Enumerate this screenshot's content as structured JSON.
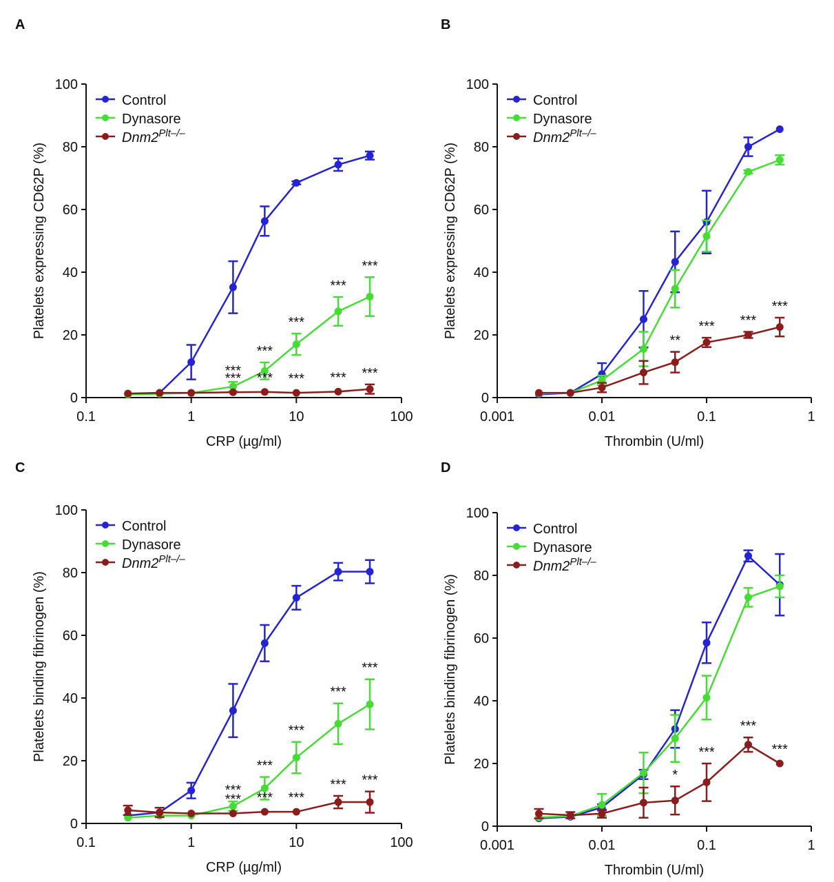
{
  "chart_data": [
    {
      "type": "line",
      "panel": "A",
      "x_label": "CRP (µg/ml)",
      "y_label": "Platelets expressing CD62P (%)",
      "xscale": "log",
      "xlim": [
        0.1,
        100
      ],
      "xticks": [
        0.1,
        1,
        10,
        100
      ],
      "ylim": [
        0,
        100
      ],
      "yticks": [
        0,
        20,
        40,
        60,
        80,
        100
      ],
      "legend": "upper left",
      "x": [
        0.25,
        0.5,
        1,
        2.5,
        5,
        10,
        25,
        50
      ],
      "series": [
        {
          "name": "Control",
          "color": "#2424d4",
          "values": [
            1.2,
            1.5,
            11.3,
            35.2,
            56.3,
            68.5,
            74.3,
            77.2
          ],
          "errors": [
            null,
            null,
            5.5,
            8.3,
            4.7,
            0.5,
            2,
            1.3
          ],
          "significance": [
            null,
            null,
            null,
            null,
            null,
            null,
            null,
            null
          ]
        },
        {
          "name": "Dynasore",
          "color": "#46dc35",
          "values": [
            1.0,
            1.2,
            1.5,
            3.5,
            8.5,
            17,
            27.5,
            32.2
          ],
          "errors": [
            null,
            null,
            null,
            1.5,
            2.7,
            3.4,
            4.6,
            6.2
          ],
          "significance": [
            null,
            null,
            null,
            "***",
            "***",
            "***",
            "***",
            "***"
          ]
        },
        {
          "name": "Dnm2",
          "name_sup": "Plt–/–",
          "color": "#8b1c1c",
          "values": [
            1.3,
            1.5,
            1.5,
            1.7,
            1.8,
            1.5,
            1.9,
            2.7
          ],
          "errors": [
            null,
            null,
            null,
            null,
            null,
            null,
            null,
            1.5
          ],
          "significance": [
            null,
            null,
            null,
            "***",
            "***",
            "***",
            "***",
            "***"
          ]
        }
      ]
    },
    {
      "type": "line",
      "panel": "B",
      "x_label": "Thrombin (U/ml)",
      "y_label": "Platelets expressing CD62P (%)",
      "xscale": "log",
      "xlim": [
        0.001,
        1
      ],
      "xticks": [
        0.001,
        0.01,
        0.1,
        1
      ],
      "ylim": [
        0,
        100
      ],
      "yticks": [
        0,
        20,
        40,
        60,
        80,
        100
      ],
      "legend": "upper left",
      "x": [
        0.0025,
        0.005,
        0.01,
        0.025,
        0.05,
        0.1,
        0.25,
        0.5
      ],
      "series": [
        {
          "name": "Control",
          "color": "#2424d4",
          "values": [
            1,
            1.5,
            7.5,
            25,
            43.3,
            56,
            80,
            85.6
          ],
          "errors": [
            null,
            null,
            3.5,
            9,
            9.7,
            10,
            3,
            null
          ],
          "significance": [
            null,
            null,
            null,
            null,
            null,
            null,
            null,
            null
          ]
        },
        {
          "name": "Dynasore",
          "color": "#46dc35",
          "values": [
            1.3,
            1.5,
            5.5,
            15.5,
            34.7,
            51.5,
            72,
            75.8
          ],
          "errors": [
            null,
            null,
            1.5,
            5.5,
            6,
            5,
            0.5,
            1.5
          ],
          "significance": [
            null,
            null,
            null,
            null,
            null,
            null,
            null,
            null
          ]
        },
        {
          "name": "Dnm2",
          "name_sup": "Plt–/–",
          "color": "#8b1c1c",
          "values": [
            1.5,
            1.5,
            3.2,
            8,
            11.3,
            17.6,
            20,
            22.5
          ],
          "errors": [
            null,
            null,
            1.5,
            3.7,
            3.3,
            1.5,
            1,
            3
          ],
          "significance": [
            null,
            null,
            null,
            null,
            "**",
            "***",
            "***",
            "***"
          ]
        }
      ]
    },
    {
      "type": "line",
      "panel": "C",
      "x_label": "CRP (µg/ml)",
      "y_label": "Platelets binding fibrinogen (%)",
      "xscale": "log",
      "xlim": [
        0.1,
        100
      ],
      "xticks": [
        0.1,
        1,
        10,
        100
      ],
      "ylim": [
        0,
        100
      ],
      "yticks": [
        0,
        20,
        40,
        60,
        80,
        100
      ],
      "legend": "upper left",
      "x": [
        0.25,
        0.5,
        1,
        2.5,
        5,
        10,
        25,
        50
      ],
      "series": [
        {
          "name": "Control",
          "color": "#2424d4",
          "values": [
            2.5,
            3.5,
            10.5,
            36,
            57.5,
            72,
            80.3,
            80.3
          ],
          "errors": [
            null,
            null,
            2.5,
            8.5,
            5.8,
            3.8,
            2.8,
            3.7
          ],
          "significance": [
            null,
            null,
            null,
            null,
            null,
            null,
            null,
            null
          ]
        },
        {
          "name": "Dynasore",
          "color": "#46dc35",
          "values": [
            1.8,
            2.5,
            2.5,
            5.5,
            11.2,
            21,
            31.8,
            38
          ],
          "errors": [
            null,
            null,
            null,
            1.5,
            3.6,
            5,
            6.5,
            8
          ],
          "significance": [
            null,
            null,
            null,
            "***",
            "***",
            "***",
            "***",
            "***"
          ]
        },
        {
          "name": "Dnm2",
          "name_sup": "Plt–/–",
          "color": "#8b1c1c",
          "values": [
            4.2,
            3.5,
            3.2,
            3.2,
            3.7,
            3.7,
            6.8,
            6.8
          ],
          "errors": [
            1.5,
            1.5,
            null,
            null,
            null,
            null,
            2,
            3.4
          ],
          "significance": [
            null,
            null,
            null,
            "***",
            "***",
            "***",
            "***",
            "***"
          ]
        }
      ]
    },
    {
      "type": "line",
      "panel": "D",
      "x_label": "Thrombin (U/ml)",
      "y_label": "Platelets binding fibrinogen (%)",
      "xscale": "log",
      "xlim": [
        0.001,
        1
      ],
      "xticks": [
        0.001,
        0.01,
        0.1,
        1
      ],
      "ylim": [
        0,
        100
      ],
      "yticks": [
        0,
        20,
        40,
        60,
        80,
        100
      ],
      "legend": "upper left",
      "x": [
        0.0025,
        0.005,
        0.01,
        0.025,
        0.05,
        0.1,
        0.25,
        0.5
      ],
      "series": [
        {
          "name": "Control",
          "color": "#2424d4",
          "values": [
            2.5,
            3,
            6,
            16.5,
            31,
            58.5,
            86.2,
            77
          ],
          "errors": [
            null,
            null,
            1,
            1.5,
            6,
            6.5,
            1.8,
            9.8
          ],
          "significance": [
            null,
            null,
            null,
            null,
            null,
            null,
            null,
            null
          ]
        },
        {
          "name": "Dynasore",
          "color": "#46dc35",
          "values": [
            2.8,
            3.2,
            6.8,
            17,
            28,
            41,
            73,
            76.5
          ],
          "errors": [
            null,
            null,
            3.5,
            6.5,
            7.5,
            7,
            3,
            3.5
          ],
          "significance": [
            null,
            null,
            null,
            null,
            null,
            null,
            null,
            null
          ]
        },
        {
          "name": "Dnm2",
          "name_sup": "Plt–/–",
          "color": "#8b1c1c",
          "values": [
            4,
            3.5,
            4,
            7.5,
            8.2,
            14,
            26,
            20
          ],
          "errors": [
            1.5,
            1,
            1.3,
            4.8,
            4.5,
            6,
            2.3,
            null
          ],
          "significance": [
            null,
            null,
            null,
            null,
            "*",
            "***",
            "***",
            "***"
          ]
        }
      ]
    }
  ]
}
